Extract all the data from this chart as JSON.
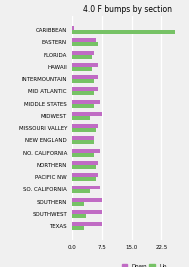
{
  "title": "4.0 F bumps by section",
  "sections": [
    "CARIBBEAN",
    "EASTERN",
    "FLORIDA",
    "HAWAII",
    "INTERMOUNTAIN",
    "MID ATLANTIC",
    "MIDDLE STATES",
    "MIDWEST",
    "MISSOURI VALLEY",
    "NEW ENGLAND",
    "NO. CALIFORNIA",
    "NORTHERN",
    "PACIFIC NW",
    "SO. CALIFORNIA",
    "SOUTHERN",
    "SOUTHWEST",
    "TEXAS"
  ],
  "down": [
    0.5,
    6.0,
    5.5,
    6.5,
    6.5,
    6.5,
    7.0,
    7.5,
    6.5,
    5.5,
    7.0,
    6.5,
    6.5,
    7.0,
    7.5,
    7.5,
    7.5
  ],
  "up": [
    26.0,
    6.5,
    5.0,
    5.0,
    5.5,
    5.5,
    5.5,
    4.5,
    6.0,
    5.5,
    5.5,
    6.0,
    6.0,
    4.5,
    3.0,
    3.5,
    3.0
  ],
  "down_color": "#c06bc4",
  "up_color": "#76c265",
  "bg_color": "#f0f0f0",
  "grid_color": "#ffffff",
  "xlim": [
    0,
    28
  ],
  "xticks": [
    0.0,
    7.5,
    15.0,
    22.5
  ],
  "xtick_labels": [
    "0.0",
    "7.5",
    "15.0",
    "22.5"
  ],
  "title_fontsize": 5.5,
  "label_fontsize": 4.0,
  "tick_fontsize": 4.0,
  "legend_fontsize": 4.0,
  "bar_height": 0.32
}
